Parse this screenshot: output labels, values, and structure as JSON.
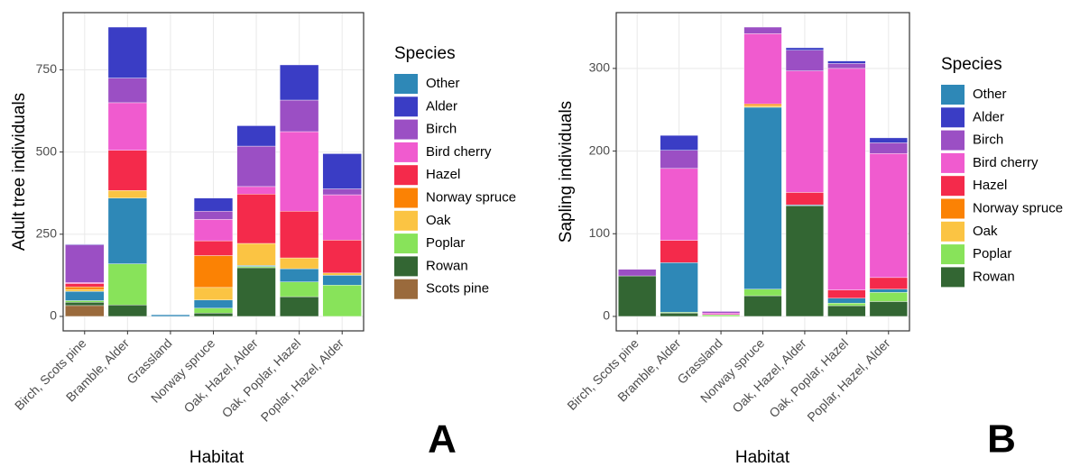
{
  "chart_data": [
    {
      "type": "stacked_bar",
      "panel_label": "A",
      "x_label": "Habitat",
      "y_label": "Adult tree individuals",
      "legend_title": "Species",
      "categories": [
        "Birch, Scots pine",
        "Bramble, Alder",
        "Grassland",
        "Norway spruce",
        "Oak, Hazel, Alder",
        "Oak, Poplar, Hazel",
        "Poplar, Hazel, Alder"
      ],
      "stack_order": [
        9,
        8,
        7,
        0,
        6,
        5,
        4,
        3,
        2,
        1
      ],
      "series": [
        {
          "name": "Other",
          "color": "#2e88b7",
          "values": [
            28,
            200,
            5,
            25,
            3,
            40,
            30
          ]
        },
        {
          "name": "Alder",
          "color": "#3a3dc5",
          "values": [
            2,
            155,
            0,
            40,
            62,
            107,
            107
          ]
        },
        {
          "name": "Birch",
          "color": "#9b4fc4",
          "values": [
            115,
            75,
            0,
            25,
            123,
            96,
            18
          ]
        },
        {
          "name": "Bird cherry",
          "color": "#f05bcf",
          "values": [
            3,
            145,
            0,
            65,
            23,
            242,
            138
          ]
        },
        {
          "name": "Hazel",
          "color": "#f42a4b",
          "values": [
            10,
            122,
            0,
            45,
            150,
            142,
            100
          ]
        },
        {
          "name": "Norway spruce",
          "color": "#fb8204",
          "values": [
            8,
            0,
            0,
            97,
            0,
            0,
            0
          ]
        },
        {
          "name": "Oak",
          "color": "#fbc443",
          "values": [
            6,
            23,
            0,
            38,
            67,
            33,
            7
          ]
        },
        {
          "name": "Poplar",
          "color": "#88e35a",
          "values": [
            5,
            125,
            0,
            15,
            4,
            45,
            95
          ]
        },
        {
          "name": "Rowan",
          "color": "#336633",
          "values": [
            10,
            35,
            0,
            10,
            148,
            60,
            0
          ]
        },
        {
          "name": "Scots pine",
          "color": "#9a6a3c",
          "values": [
            33,
            0,
            0,
            0,
            0,
            0,
            0
          ]
        }
      ],
      "ylim": [
        -44,
        924
      ],
      "yticks": [
        0,
        250,
        500,
        750
      ],
      "grid": true
    },
    {
      "type": "stacked_bar",
      "panel_label": "B",
      "x_label": "Habitat",
      "y_label": "Sapling individuals",
      "legend_title": "Species",
      "categories": [
        "Birch, Scots pine",
        "Bramble, Alder",
        "Grassland",
        "Norway spruce",
        "Oak, Hazel, Alder",
        "Oak, Poplar, Hazel",
        "Poplar, Hazel, Alder"
      ],
      "stack_order": [
        8,
        7,
        0,
        6,
        5,
        4,
        3,
        2,
        1
      ],
      "series": [
        {
          "name": "Other",
          "color": "#2e88b7",
          "values": [
            0,
            60,
            0,
            220,
            1,
            6,
            4
          ]
        },
        {
          "name": "Alder",
          "color": "#3a3dc5",
          "values": [
            0,
            18,
            0,
            0,
            3,
            3,
            6
          ]
        },
        {
          "name": "Birch",
          "color": "#9b4fc4",
          "values": [
            8,
            22,
            2,
            8,
            25,
            6,
            13
          ]
        },
        {
          "name": "Bird cherry",
          "color": "#f05bcf",
          "values": [
            0,
            87,
            2,
            85,
            147,
            268,
            150
          ]
        },
        {
          "name": "Hazel",
          "color": "#f42a4b",
          "values": [
            0,
            27,
            0,
            0,
            15,
            10,
            14
          ]
        },
        {
          "name": "Norway spruce",
          "color": "#fb8204",
          "values": [
            0,
            0,
            0,
            2,
            0,
            0,
            0
          ]
        },
        {
          "name": "Oak",
          "color": "#fbc443",
          "values": [
            0,
            0,
            0,
            2,
            0,
            0,
            0
          ]
        },
        {
          "name": "Poplar",
          "color": "#88e35a",
          "values": [
            0,
            1,
            2,
            8,
            0,
            3,
            11
          ]
        },
        {
          "name": "Rowan",
          "color": "#336633",
          "values": [
            49,
            4,
            0,
            25,
            134,
            13,
            18
          ]
        }
      ],
      "ylim": [
        -17.5,
        367.5
      ],
      "yticks": [
        0,
        100,
        200,
        300
      ],
      "grid": true
    }
  ]
}
